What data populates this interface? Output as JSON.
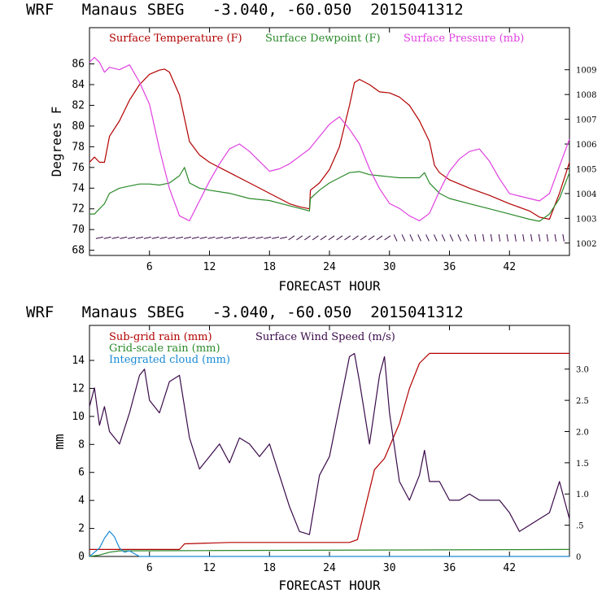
{
  "colors": {
    "temperature": "#b30000",
    "dewpoint": "#2a8a2a",
    "pressure": "#e040e0",
    "subgrid_rain": "#b30000",
    "gridscale_rain": "#2a8a2a",
    "cloud": "#1a8ad4",
    "wind": "#3a0a4a",
    "axes": "#000000"
  },
  "chart_data": [
    {
      "type": "line",
      "title": "WRF   Manaus SBEG   -3.040, -60.050  2015041312",
      "xlabel": "FORECAST HOUR",
      "ylabel": "Degrees F",
      "xlim": [
        0,
        48
      ],
      "ylim": [
        67.5,
        89.5
      ],
      "x_ticks": [
        6,
        12,
        18,
        24,
        30,
        36,
        42
      ],
      "y_ticks": [
        68,
        70,
        72,
        74,
        76,
        78,
        80,
        82,
        84,
        86
      ],
      "y2lim": [
        1001.5,
        1010.7
      ],
      "y2_ticks": [
        1002,
        1003,
        1004,
        1005,
        1006,
        1007,
        1008,
        1009
      ],
      "series": [
        {
          "name": "Surface Temperature (F)",
          "axis": "left",
          "x": [
            0,
            0.5,
            1,
            1.5,
            2,
            3,
            4,
            5,
            6,
            7,
            7.5,
            8,
            9,
            10,
            11,
            12,
            14,
            16,
            18,
            20,
            21,
            22,
            22.1,
            23,
            24,
            25,
            26,
            26.5,
            27,
            28,
            29,
            30,
            31,
            32,
            33,
            34,
            34.5,
            35,
            36,
            38,
            40,
            42,
            44,
            45,
            46,
            47,
            48
          ],
          "y": [
            76.5,
            77,
            76.5,
            76.5,
            79,
            80.5,
            82.5,
            84,
            85,
            85.4,
            85.5,
            85.2,
            83,
            78.5,
            77.2,
            76.5,
            75.5,
            74.5,
            73.5,
            72.5,
            72.2,
            72,
            73.8,
            74.5,
            75.8,
            78,
            82,
            84.2,
            84.5,
            84,
            83.3,
            83.2,
            82.8,
            82,
            80.5,
            78.5,
            76.2,
            75.5,
            74.8,
            74,
            73.3,
            72.5,
            71.8,
            71.2,
            71,
            73.5,
            76.5
          ]
        },
        {
          "name": "Surface Dewpoint (F)",
          "axis": "left",
          "x": [
            0,
            0.5,
            1,
            1.5,
            2,
            3,
            4,
            5,
            6,
            7,
            8,
            9,
            9.5,
            10,
            11,
            12,
            14,
            16,
            18,
            20,
            22,
            22.1,
            23,
            24,
            25,
            26,
            27,
            28,
            29,
            30,
            31,
            32,
            33,
            33.5,
            34,
            35,
            36,
            38,
            40,
            42,
            44,
            45,
            46,
            47,
            48
          ],
          "y": [
            71.5,
            71.5,
            72,
            72.5,
            73.5,
            74,
            74.2,
            74.4,
            74.4,
            74.3,
            74.5,
            75.2,
            76,
            74.5,
            74,
            73.8,
            73.5,
            73,
            72.8,
            72.3,
            71.8,
            73,
            73.8,
            74.5,
            75,
            75.5,
            75.6,
            75.3,
            75.2,
            75.1,
            75,
            75,
            75,
            75.5,
            74.5,
            73.5,
            73,
            72.5,
            72,
            71.5,
            71,
            70.8,
            71.5,
            73,
            75.5
          ]
        },
        {
          "name": "Surface Pressure (mb)",
          "axis": "right",
          "x": [
            0,
            0.5,
            1,
            1.5,
            2,
            3,
            4,
            5,
            6,
            7,
            8,
            9,
            10,
            11,
            12,
            13,
            14,
            15,
            16,
            17,
            18,
            19,
            20,
            21,
            22,
            23,
            24,
            25,
            26,
            27,
            28,
            29,
            30,
            31,
            32,
            33,
            34,
            35,
            36,
            37,
            38,
            39,
            40,
            41,
            42,
            43,
            44,
            45,
            46,
            47,
            48
          ],
          "y": [
            1009.3,
            1009.5,
            1009.3,
            1008.9,
            1009.1,
            1009.0,
            1009.2,
            1008.5,
            1007.6,
            1005.8,
            1004.2,
            1003.1,
            1002.9,
            1003.7,
            1004.5,
            1005.2,
            1005.8,
            1006.0,
            1005.7,
            1005.3,
            1004.9,
            1005.0,
            1005.2,
            1005.5,
            1005.8,
            1006.3,
            1006.8,
            1007.1,
            1006.6,
            1006.0,
            1005.0,
            1004.2,
            1003.6,
            1003.4,
            1003.1,
            1002.9,
            1003.2,
            1004.1,
            1004.9,
            1005.4,
            1005.7,
            1005.8,
            1005.3,
            1004.6,
            1004.0,
            1003.9,
            1003.8,
            1003.7,
            1004.0,
            1005.1,
            1006.2
          ]
        }
      ],
      "legend": [
        "Surface Temperature (F)",
        "Surface Dewpoint (F)",
        "Surface Pressure (mb)"
      ],
      "legend_position": "top"
    },
    {
      "type": "line",
      "title": "WRF   Manaus SBEG   -3.040, -60.050  2015041312",
      "xlabel": "FORECAST HOUR",
      "ylabel": "mm",
      "xlim": [
        0,
        48
      ],
      "ylim": [
        0,
        16.5
      ],
      "x_ticks": [
        6,
        12,
        18,
        24,
        30,
        36,
        42
      ],
      "y_ticks": [
        0,
        2,
        4,
        6,
        8,
        10,
        12,
        14
      ],
      "y2lim": [
        0,
        3.7
      ],
      "y2_ticks": [
        0,
        0.5,
        1.0,
        1.5,
        2.0,
        2.5,
        3.0
      ],
      "y2_tick_labels": [
        "0",
        ".5",
        "1.0",
        "1.5",
        "2.0",
        "2.5",
        "3.0"
      ],
      "series": [
        {
          "name": "Sub-grid rain (mm)",
          "axis": "left",
          "x": [
            0,
            9,
            9.5,
            14,
            26,
            26.8,
            28.5,
            29.5,
            31,
            32,
            33,
            34,
            48
          ],
          "y": [
            0.5,
            0.5,
            0.9,
            1.0,
            1.0,
            1.2,
            6.2,
            7.0,
            9.5,
            12.0,
            13.8,
            14.5,
            14.5
          ]
        },
        {
          "name": "Grid-scale rain (mm)",
          "axis": "left",
          "x": [
            0,
            1,
            2,
            3,
            48
          ],
          "y": [
            0,
            0.1,
            0.3,
            0.4,
            0.5
          ]
        },
        {
          "name": "Integrated cloud (mm)",
          "axis": "left",
          "x": [
            0,
            1,
            1.5,
            2,
            2.5,
            3,
            3.5,
            4,
            4.5,
            5,
            48
          ],
          "y": [
            0,
            0.6,
            1.3,
            1.8,
            1.4,
            0.6,
            0.3,
            0.4,
            0.2,
            0,
            0
          ]
        },
        {
          "name": "Surface Wind Speed (m/s)",
          "axis": "right",
          "x": [
            0,
            0.5,
            1,
            1.5,
            2,
            3,
            4,
            5,
            5.5,
            6,
            7,
            8,
            9,
            10,
            11,
            12,
            13,
            14,
            15,
            16,
            17,
            18,
            19,
            20,
            21,
            22,
            23,
            24,
            25,
            26,
            26.5,
            27,
            28,
            29,
            29.5,
            30,
            31,
            32,
            33,
            33.5,
            34,
            35,
            36,
            37,
            38,
            39,
            40,
            41,
            42,
            43,
            44,
            45,
            46,
            47,
            48
          ],
          "y": [
            2.4,
            2.7,
            2.1,
            2.4,
            2.0,
            1.8,
            2.3,
            2.9,
            3.0,
            2.5,
            2.3,
            2.8,
            2.9,
            1.9,
            1.4,
            1.6,
            1.8,
            1.5,
            1.9,
            1.8,
            1.6,
            1.8,
            1.3,
            0.8,
            0.4,
            0.35,
            1.3,
            1.6,
            2.4,
            3.2,
            3.25,
            2.8,
            1.8,
            2.9,
            3.2,
            2.3,
            1.2,
            0.9,
            1.3,
            1.7,
            1.2,
            1.2,
            0.9,
            0.9,
            1.0,
            0.9,
            0.9,
            0.9,
            0.7,
            0.4,
            0.5,
            0.6,
            0.7,
            1.2,
            0.6
          ]
        }
      ],
      "legend": [
        "Sub-grid rain (mm)",
        "Surface Wind Speed (m/s)",
        "Grid-scale rain (mm)",
        "Integrated cloud (mm)"
      ],
      "legend_position": "top-left"
    }
  ]
}
